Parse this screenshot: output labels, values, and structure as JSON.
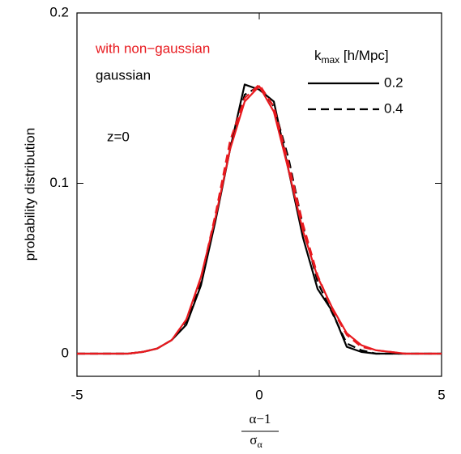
{
  "chart_data": {
    "type": "line",
    "y_label": "probability distribution",
    "x_label": {
      "numerator": "α−1",
      "denominator": "σ",
      "denominator_subscript": "α"
    },
    "annotation": "z=0",
    "legend": {
      "models": [
        {
          "label": "with non−gaussian",
          "color": "#e8191e"
        },
        {
          "label": "gaussian",
          "color": "#000000"
        }
      ],
      "kmax_title": {
        "symbol": "k",
        "subscript": "max",
        "unit": " [h/Mpc]"
      },
      "kmax": [
        {
          "label": "0.2",
          "dash": "solid"
        },
        {
          "label": "0.4",
          "dash": "dashed"
        }
      ]
    },
    "x": [
      -5,
      -4.4,
      -4,
      -3.6,
      -3.2,
      -2.8,
      -2.4,
      -2,
      -1.6,
      -1.2,
      -0.8,
      -0.4,
      0,
      0.4,
      0.8,
      1.2,
      1.6,
      2,
      2.4,
      2.8,
      3.2,
      3.6,
      4,
      4.4,
      5
    ],
    "series": [
      {
        "model": 1,
        "kmax": 0,
        "values": [
          0,
          0,
          0,
          0,
          0.001,
          0.003,
          0.008,
          0.017,
          0.04,
          0.078,
          0.12,
          0.158,
          0.155,
          0.148,
          0.108,
          0.068,
          0.038,
          0.025,
          0.004,
          0.001,
          0,
          0,
          0,
          0,
          0
        ]
      },
      {
        "model": 1,
        "kmax": 1,
        "values": [
          0,
          0,
          0,
          0,
          0.001,
          0.003,
          0.008,
          0.019,
          0.042,
          0.08,
          0.122,
          0.152,
          0.157,
          0.145,
          0.115,
          0.075,
          0.042,
          0.024,
          0.006,
          0.002,
          0,
          0,
          0,
          0,
          0
        ]
      },
      {
        "model": 0,
        "kmax": 0,
        "values": [
          0,
          0,
          0,
          0,
          0.001,
          0.003,
          0.008,
          0.02,
          0.045,
          0.08,
          0.12,
          0.148,
          0.157,
          0.142,
          0.108,
          0.072,
          0.045,
          0.027,
          0.012,
          0.005,
          0.002,
          0.001,
          0,
          0,
          0
        ]
      },
      {
        "model": 0,
        "kmax": 1,
        "values": [
          0,
          0,
          0,
          0,
          0.001,
          0.003,
          0.008,
          0.02,
          0.044,
          0.082,
          0.125,
          0.15,
          0.158,
          0.145,
          0.112,
          0.076,
          0.046,
          0.026,
          0.011,
          0.004,
          0.002,
          0.001,
          0,
          0,
          0
        ]
      }
    ],
    "xlim": [
      -5,
      5
    ],
    "ylim": [
      -0.0133,
      0.2
    ],
    "xticks": [
      -5,
      0,
      5
    ],
    "yticks": [
      0,
      0.1,
      0.2
    ]
  }
}
